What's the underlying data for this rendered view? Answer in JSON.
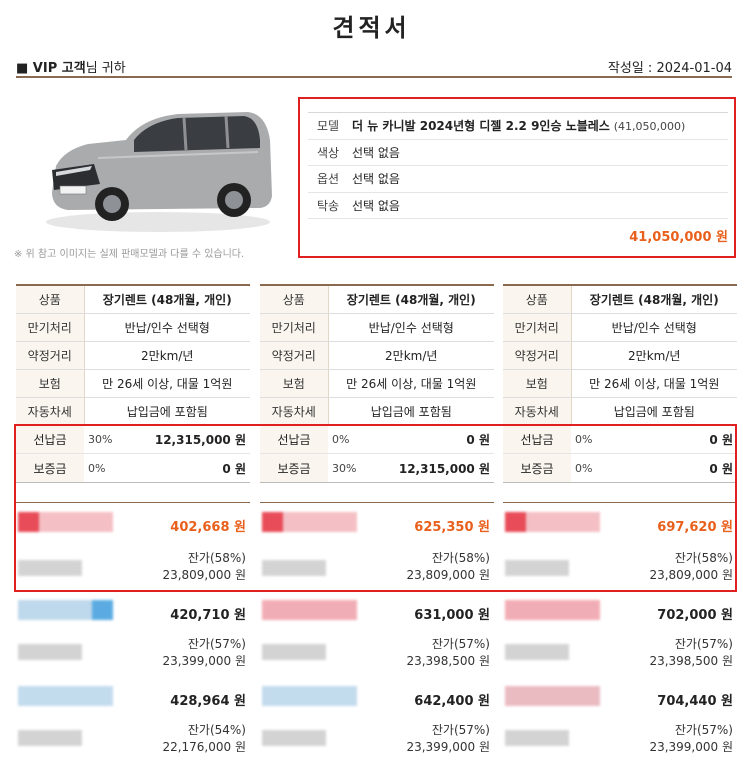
{
  "doc": {
    "title": "견적서",
    "customer_prefix": "■ VIP 고객",
    "customer_suffix": "님 귀하",
    "date_label": "작성일 : 2024-01-04",
    "image_note": "※ 위 참고 이미지는 실제 판매모델과 다를 수 있습니다."
  },
  "model": {
    "rows": [
      {
        "key": "모델",
        "value": "더 뉴 카니발 2024년형 디젤 2.2 9인승 노블레스",
        "price": "(41,050,000)"
      },
      {
        "key": "색상",
        "value": "선택 없음",
        "price": ""
      },
      {
        "key": "옵션",
        "value": "선택 없음",
        "price": ""
      },
      {
        "key": "탁송",
        "value": "선택 없음",
        "price": ""
      }
    ],
    "total": "41,050,000 원"
  },
  "columns": [
    {
      "spec": [
        {
          "k": "상품",
          "v": "장기렌트 (48개월, 개인)"
        },
        {
          "k": "만기처리",
          "v": "반납/인수 선택형"
        },
        {
          "k": "약정거리",
          "v": "2만km/년"
        },
        {
          "k": "보험",
          "v": "만 26세 이상, 대물 1억원"
        },
        {
          "k": "자동차세",
          "v": "납입금에 포함됨"
        }
      ],
      "pay": [
        {
          "k": "선납금",
          "pct": "30%",
          "amt": "12,315,000 원"
        },
        {
          "k": "보증금",
          "pct": "0%",
          "amt": "0 원"
        }
      ],
      "offers": [
        {
          "price": "402,668 원",
          "resid_pct": "잔가(58%)",
          "resid_amt": "23,809,000 원"
        },
        {
          "price": "420,710 원",
          "resid_pct": "잔가(57%)",
          "resid_amt": "23,399,000 원"
        },
        {
          "price": "428,964 원",
          "resid_pct": "잔가(54%)",
          "resid_amt": "22,176,000 원"
        }
      ]
    },
    {
      "spec": [
        {
          "k": "상품",
          "v": "장기렌트 (48개월, 개인)"
        },
        {
          "k": "만기처리",
          "v": "반납/인수 선택형"
        },
        {
          "k": "약정거리",
          "v": "2만km/년"
        },
        {
          "k": "보험",
          "v": "만 26세 이상, 대물 1억원"
        },
        {
          "k": "자동차세",
          "v": "납입금에 포함됨"
        }
      ],
      "pay": [
        {
          "k": "선납금",
          "pct": "0%",
          "amt": "0 원"
        },
        {
          "k": "보증금",
          "pct": "30%",
          "amt": "12,315,000 원"
        }
      ],
      "offers": [
        {
          "price": "625,350 원",
          "resid_pct": "잔가(58%)",
          "resid_amt": "23,809,000 원"
        },
        {
          "price": "631,000 원",
          "resid_pct": "잔가(57%)",
          "resid_amt": "23,398,500 원"
        },
        {
          "price": "642,400 원",
          "resid_pct": "잔가(57%)",
          "resid_amt": "23,399,000 원"
        }
      ]
    },
    {
      "spec": [
        {
          "k": "상품",
          "v": "장기렌트 (48개월, 개인)"
        },
        {
          "k": "만기처리",
          "v": "반납/인수 선택형"
        },
        {
          "k": "약정거리",
          "v": "2만km/년"
        },
        {
          "k": "보험",
          "v": "만 26세 이상, 대물 1억원"
        },
        {
          "k": "자동차세",
          "v": "납입금에 포함됨"
        }
      ],
      "pay": [
        {
          "k": "선납금",
          "pct": "0%",
          "amt": "0 원"
        },
        {
          "k": "보증금",
          "pct": "0%",
          "amt": "0 원"
        }
      ],
      "offers": [
        {
          "price": "697,620 원",
          "resid_pct": "잔가(58%)",
          "resid_amt": "23,809,000 원"
        },
        {
          "price": "702,000 원",
          "resid_pct": "잔가(57%)",
          "resid_amt": "23,398,500 원"
        },
        {
          "price": "704,440 원",
          "resid_pct": "잔가(57%)",
          "resid_amt": "23,399,000 원"
        }
      ]
    }
  ],
  "colors": {
    "accent_price": "#e8601c",
    "frame": "#e02020",
    "brown_rule": "#8a6a4f"
  }
}
